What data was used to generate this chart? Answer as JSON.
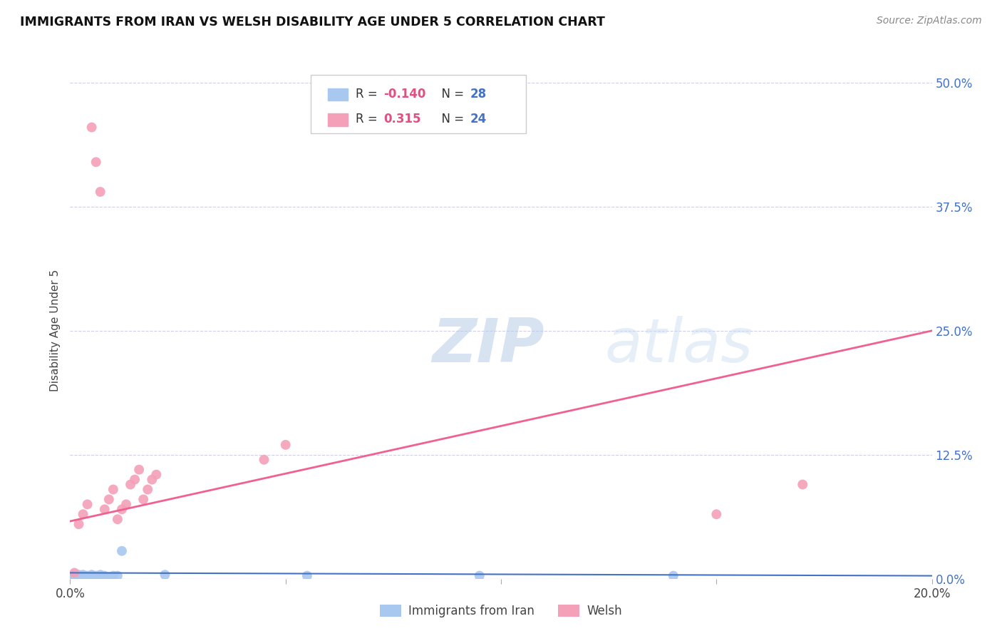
{
  "title": "IMMIGRANTS FROM IRAN VS WELSH DISABILITY AGE UNDER 5 CORRELATION CHART",
  "source": "Source: ZipAtlas.com",
  "ylabel": "Disability Age Under 5",
  "xlim": [
    0.0,
    0.2
  ],
  "ylim": [
    0.0,
    0.5
  ],
  "xticks": [
    0.0,
    0.05,
    0.1,
    0.15,
    0.2
  ],
  "xtick_labels": [
    "0.0%",
    "",
    "",
    "",
    "20.0%"
  ],
  "ytick_labels_right": [
    "0.0%",
    "12.5%",
    "25.0%",
    "37.5%",
    "50.0%"
  ],
  "ytick_positions_right": [
    0.0,
    0.125,
    0.25,
    0.375,
    0.5
  ],
  "legend_label1": "Immigrants from Iran",
  "legend_label2": "Welsh",
  "color_blue": "#a8c8f0",
  "color_pink": "#f4a0b8",
  "color_line_blue": "#4472c4",
  "color_line_pink": "#f06090",
  "color_label_blue": "#4472c4",
  "color_r_value": "#e05080",
  "watermark_zip": "ZIP",
  "watermark_atlas": "atlas",
  "background_color": "#ffffff",
  "grid_color": "#d0d0e8",
  "iran_x": [
    0.001,
    0.001,
    0.001,
    0.002,
    0.002,
    0.002,
    0.003,
    0.003,
    0.003,
    0.004,
    0.004,
    0.005,
    0.005,
    0.005,
    0.006,
    0.006,
    0.007,
    0.007,
    0.008,
    0.008,
    0.009,
    0.01,
    0.011,
    0.012,
    0.022,
    0.055,
    0.095,
    0.14
  ],
  "iran_y": [
    0.002,
    0.003,
    0.004,
    0.002,
    0.003,
    0.004,
    0.002,
    0.003,
    0.004,
    0.002,
    0.003,
    0.002,
    0.003,
    0.004,
    0.002,
    0.003,
    0.002,
    0.004,
    0.002,
    0.003,
    0.002,
    0.003,
    0.003,
    0.028,
    0.004,
    0.003,
    0.003,
    0.003
  ],
  "welsh_x": [
    0.001,
    0.002,
    0.003,
    0.004,
    0.005,
    0.006,
    0.007,
    0.008,
    0.009,
    0.01,
    0.011,
    0.012,
    0.013,
    0.014,
    0.015,
    0.016,
    0.017,
    0.018,
    0.019,
    0.02,
    0.045,
    0.05,
    0.15,
    0.17
  ],
  "welsh_y": [
    0.006,
    0.055,
    0.065,
    0.075,
    0.455,
    0.42,
    0.39,
    0.07,
    0.08,
    0.09,
    0.06,
    0.07,
    0.075,
    0.095,
    0.1,
    0.11,
    0.08,
    0.09,
    0.1,
    0.105,
    0.12,
    0.135,
    0.065,
    0.095
  ],
  "iran_trend_x": [
    0.0,
    0.2
  ],
  "iran_trend_y": [
    0.006,
    0.003
  ],
  "welsh_trend_x": [
    0.0,
    0.2
  ],
  "welsh_trend_y": [
    0.058,
    0.25
  ]
}
